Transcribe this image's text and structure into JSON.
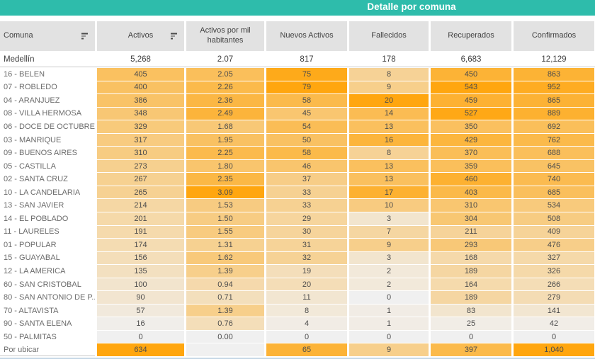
{
  "title": "Detalle por comuna",
  "colors": {
    "accent_teal": "#2ebcab",
    "header_gray": "#e2e2e2",
    "heat_low": "#f0f0f0",
    "heat_high": "#ffa60f",
    "bottom_rule": "#c9dae7"
  },
  "icons": {
    "sort": "sort-descending-bars-icon"
  },
  "chart_data": {
    "type": "table",
    "subtype": "highlight-heatmap-table",
    "title": "Detalle por comuna",
    "legend_position": "none",
    "grid": false,
    "heat_scale": {
      "low_color": "#f0f0f0",
      "high_color": "#ffa60f",
      "scaled_per_column_from_zero_to_max": true
    },
    "columns": [
      {
        "label": "Comuna",
        "sorted": true
      },
      {
        "label": "Activos",
        "sorted": true
      },
      {
        "label": "Activos por mil habitantes",
        "sorted": false
      },
      {
        "label": "Nuevos Activos",
        "sorted": false
      },
      {
        "label": "Fallecidos",
        "sorted": false
      },
      {
        "label": "Recuperados",
        "sorted": false
      },
      {
        "label": "Confirmados",
        "sorted": false
      }
    ],
    "totals": {
      "label": "Medellín",
      "values": [
        "5,268",
        "2.07",
        "817",
        "178",
        "6,683",
        "12,129"
      ]
    },
    "rows": [
      {
        "label": "16 - BELEN",
        "values": [
          "405",
          "2.05",
          "75",
          "8",
          "450",
          "863"
        ]
      },
      {
        "label": "07 - ROBLEDO",
        "values": [
          "400",
          "2.26",
          "79",
          "9",
          "543",
          "952"
        ]
      },
      {
        "label": "04 - ARANJUEZ",
        "values": [
          "386",
          "2.36",
          "58",
          "20",
          "459",
          "865"
        ]
      },
      {
        "label": "08 - VILLA HERMOSA",
        "values": [
          "348",
          "2.49",
          "45",
          "14",
          "527",
          "889"
        ]
      },
      {
        "label": "06 - DOCE DE OCTUBRE",
        "values": [
          "329",
          "1.68",
          "54",
          "13",
          "350",
          "692"
        ]
      },
      {
        "label": "03 - MANRIQUE",
        "values": [
          "317",
          "1.95",
          "50",
          "16",
          "429",
          "762"
        ]
      },
      {
        "label": "09 - BUENOS AIRES",
        "values": [
          "310",
          "2.25",
          "58",
          "8",
          "370",
          "688"
        ]
      },
      {
        "label": "05 - CASTILLA",
        "values": [
          "273",
          "1.80",
          "46",
          "13",
          "359",
          "645"
        ]
      },
      {
        "label": "02 - SANTA CRUZ",
        "values": [
          "267",
          "2.35",
          "37",
          "13",
          "460",
          "740"
        ]
      },
      {
        "label": "10 - LA CANDELARIA",
        "values": [
          "265",
          "3.09",
          "33",
          "17",
          "403",
          "685"
        ]
      },
      {
        "label": "13 - SAN JAVIER",
        "values": [
          "214",
          "1.53",
          "33",
          "10",
          "310",
          "534"
        ]
      },
      {
        "label": "14 - EL POBLADO",
        "values": [
          "201",
          "1.50",
          "29",
          "3",
          "304",
          "508"
        ]
      },
      {
        "label": "11 - LAURELES",
        "values": [
          "191",
          "1.55",
          "30",
          "7",
          "211",
          "409"
        ]
      },
      {
        "label": "01 - POPULAR",
        "values": [
          "174",
          "1.31",
          "31",
          "9",
          "293",
          "476"
        ]
      },
      {
        "label": "15 - GUAYABAL",
        "values": [
          "156",
          "1.62",
          "32",
          "3",
          "168",
          "327"
        ]
      },
      {
        "label": "12 - LA AMERICA",
        "values": [
          "135",
          "1.39",
          "19",
          "2",
          "189",
          "326"
        ]
      },
      {
        "label": "60 - SAN CRISTOBAL",
        "values": [
          "100",
          "0.94",
          "20",
          "2",
          "164",
          "266"
        ]
      },
      {
        "label": "80 - SAN ANTONIO DE P..",
        "values": [
          "90",
          "0.71",
          "11",
          "0",
          "189",
          "279"
        ]
      },
      {
        "label": "70 - ALTAVISTA",
        "values": [
          "57",
          "1.39",
          "8",
          "1",
          "83",
          "141"
        ]
      },
      {
        "label": "90 - SANTA ELENA",
        "values": [
          "16",
          "0.76",
          "4",
          "1",
          "25",
          "42"
        ]
      },
      {
        "label": "50 - PALMITAS",
        "values": [
          "0",
          "0.00",
          "0",
          "0",
          "0",
          "0"
        ]
      },
      {
        "label": "Por ubicar",
        "values": [
          "634",
          "",
          "65",
          "9",
          "397",
          "1,040"
        ]
      }
    ]
  }
}
